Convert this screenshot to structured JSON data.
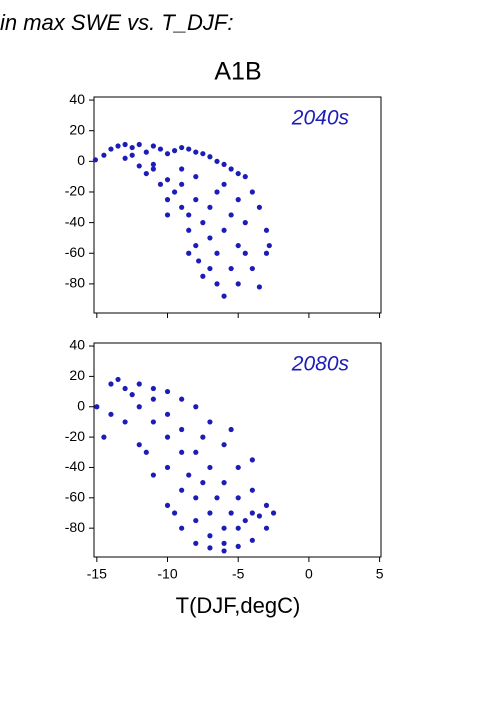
{
  "header": "in max SWE vs. T_DJF:",
  "title": "A1B",
  "chart_data": [
    {
      "type": "scatter",
      "annotation": "2040s",
      "xlim": [
        -15.2,
        5.1
      ],
      "ylim": [
        -99,
        42
      ],
      "xticks": [
        -15,
        -10,
        -5,
        0,
        5
      ],
      "yticks": [
        40,
        20,
        0,
        -20,
        -40,
        -60,
        -80
      ],
      "series": [
        {
          "color": "#1c1cb8",
          "x": [
            -15.1,
            -14.5,
            -14,
            -13.5,
            -13,
            -12.5,
            -12,
            -11.5,
            -11,
            -10.5,
            -10,
            -9.5,
            -9,
            -8.5,
            -8,
            -7.5,
            -7,
            -6.5,
            -6,
            -5.5,
            -5,
            -4.5,
            -4,
            -3.5,
            -3,
            -2.8,
            -3,
            -13,
            -12,
            -11.5,
            -11,
            -10.5,
            -10,
            -10,
            -9.5,
            -9,
            -9,
            -8.5,
            -8.5,
            -8,
            -8,
            -7.8,
            -7.5,
            -7,
            -7,
            -7,
            -6.5,
            -6.5,
            -6.5,
            -6,
            -6,
            -5.5,
            -5.5,
            -5,
            -5,
            -4.5,
            -4.5,
            -4,
            -3.5,
            -8,
            -9,
            -11,
            -7.5,
            -6,
            -5,
            -12.5,
            -10,
            -8.5
          ],
          "values": [
            1,
            4,
            8,
            10,
            11,
            9,
            11,
            6,
            10,
            8,
            5,
            7,
            9,
            8,
            6,
            5,
            3,
            0,
            -2,
            -5,
            -8,
            -10,
            -20,
            -30,
            -45,
            -55,
            -60,
            2,
            -3,
            -8,
            -5,
            -15,
            -12,
            -25,
            -20,
            -30,
            -15,
            -35,
            -45,
            -25,
            -55,
            -65,
            -40,
            -50,
            -30,
            -70,
            -60,
            -80,
            -20,
            -45,
            -88,
            -70,
            -35,
            -55,
            -80,
            -60,
            -40,
            -70,
            -82,
            -10,
            -5,
            -2,
            -75,
            -15,
            -25,
            4,
            -35,
            -60
          ]
        }
      ]
    },
    {
      "type": "scatter",
      "annotation": "2080s",
      "x_label": "T(DJF,degC)",
      "xlim": [
        -15.2,
        5.1
      ],
      "ylim": [
        -99,
        42
      ],
      "xticks": [
        -15,
        -10,
        -5,
        0,
        5
      ],
      "yticks": [
        40,
        20,
        0,
        -20,
        -40,
        -60,
        -80
      ],
      "series": [
        {
          "color": "#1c1cb8",
          "x": [
            -15,
            -14,
            -13.5,
            -12,
            -11,
            -10,
            -9,
            -8,
            -7,
            -6,
            -5,
            -4,
            -3,
            -2.5,
            -3,
            -4,
            -5,
            -6,
            -7,
            -8,
            -9,
            -10,
            -11,
            -12,
            -13,
            -14,
            -14.5,
            -12,
            -11,
            -11,
            -10,
            -10,
            -10,
            -9,
            -9,
            -9,
            -8.5,
            -8,
            -8,
            -8,
            -7.5,
            -7,
            -7,
            -7,
            -6.5,
            -6,
            -6,
            -5.5,
            -5,
            -5,
            -4.5,
            -4,
            -6,
            -7.5,
            -12.5,
            -13,
            -9.5,
            -11.5,
            -4,
            -5.5,
            -3.5
          ],
          "values": [
            0,
            15,
            18,
            15,
            12,
            10,
            5,
            0,
            -10,
            -25,
            -40,
            -55,
            -65,
            -70,
            -80,
            -88,
            -92,
            -95,
            -93,
            -90,
            -80,
            -65,
            -45,
            -25,
            -10,
            -5,
            -20,
            0,
            -10,
            5,
            -20,
            -5,
            -40,
            -30,
            -15,
            -55,
            -45,
            -30,
            -60,
            -75,
            -50,
            -40,
            -70,
            -85,
            -60,
            -50,
            -80,
            -70,
            -60,
            -80,
            -75,
            -70,
            -90,
            -20,
            8,
            12,
            -70,
            -30,
            -35,
            -15,
            -72
          ]
        }
      ]
    }
  ]
}
